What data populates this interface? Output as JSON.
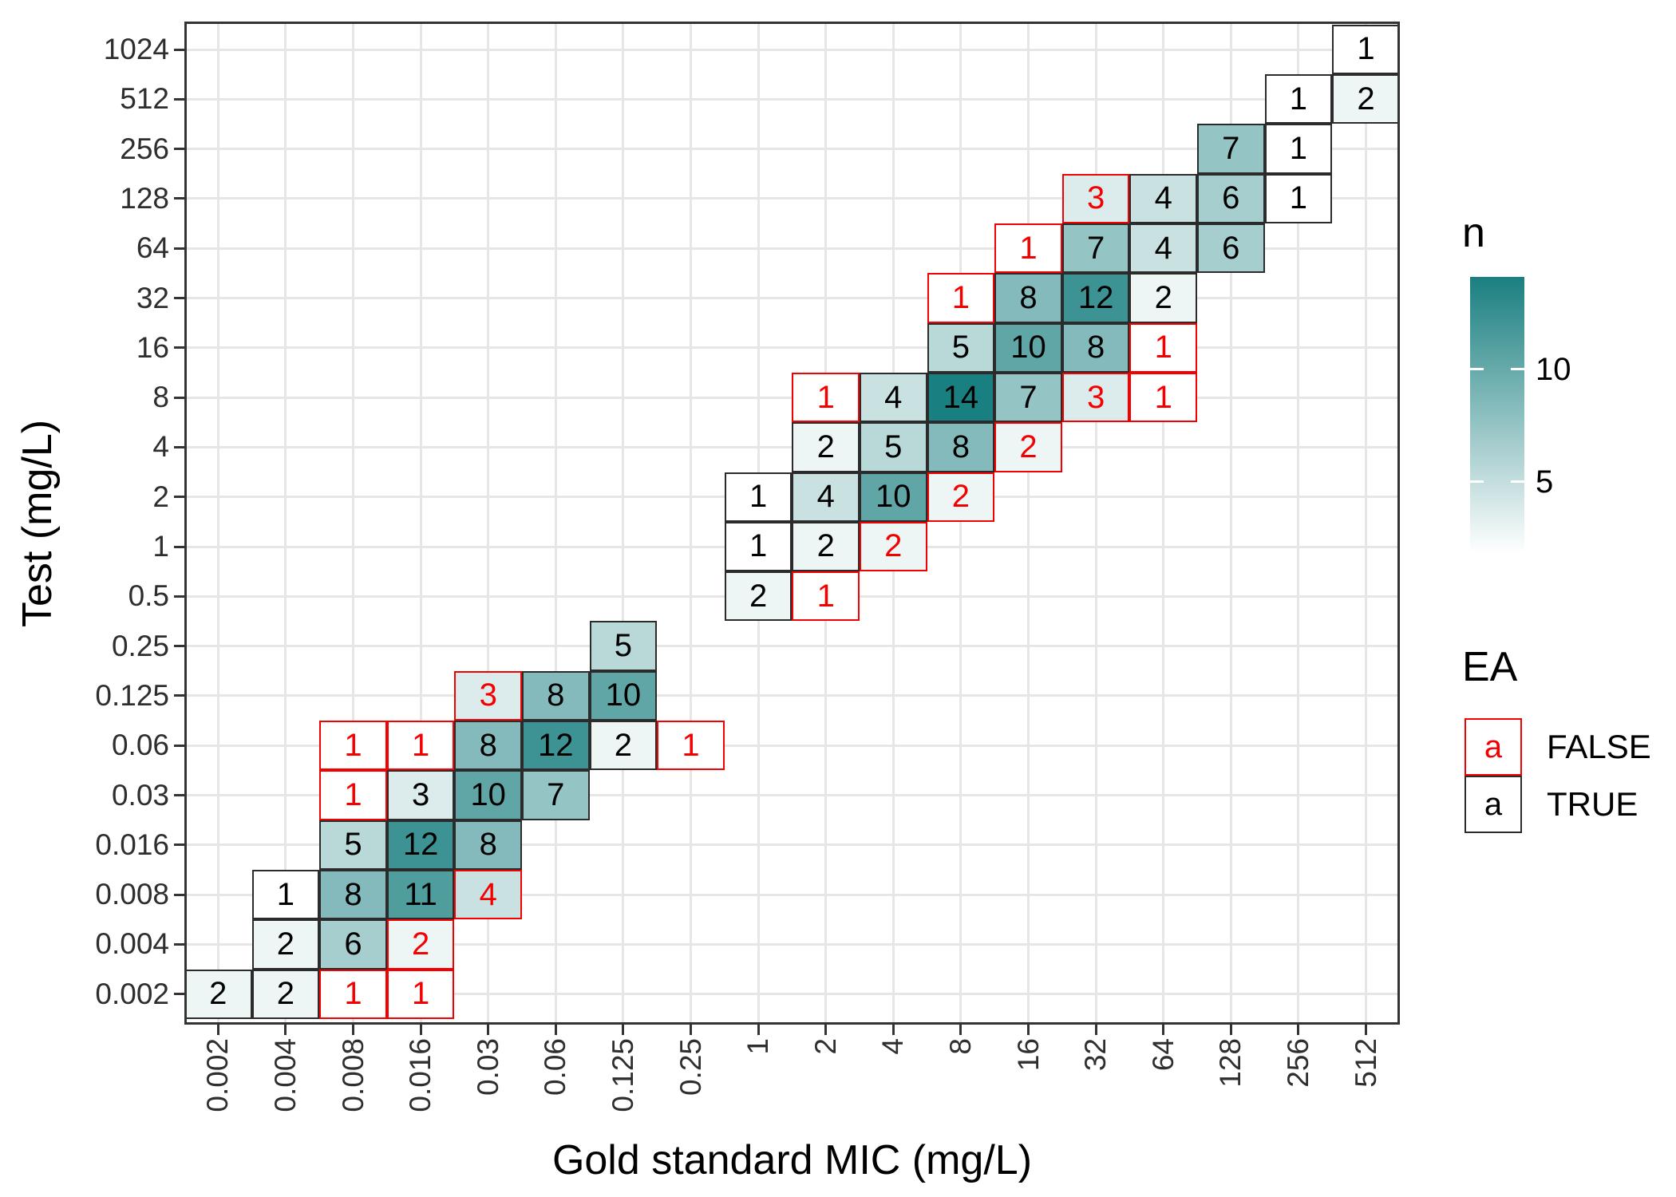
{
  "chart_data": {
    "type": "heatmap",
    "title": "",
    "xlabel": "Gold standard MIC (mg/L)",
    "ylabel": "Test (mg/L)",
    "grid": true,
    "x_categories": [
      "0.002",
      "0.004",
      "0.008",
      "0.016",
      "0.03",
      "0.06",
      "0.125",
      "0.25",
      "1",
      "2",
      "4",
      "8",
      "16",
      "32",
      "64",
      "128",
      "256",
      "512"
    ],
    "y_categories": [
      "1024",
      "512",
      "256",
      "128",
      "64",
      "32",
      "16",
      "8",
      "4",
      "2",
      "1",
      "0.5",
      "0.25",
      "0.125",
      "0.06",
      "0.03",
      "0.016",
      "0.008",
      "0.004",
      "0.002"
    ],
    "fill_legend": {
      "title": "n",
      "tick_labels": [
        "10",
        "5"
      ],
      "domain": [
        1,
        14
      ],
      "position": "right"
    },
    "ea_legend": {
      "title": "EA",
      "entries": [
        {
          "key": "a",
          "label": "FALSE"
        },
        {
          "key": "a",
          "label": "TRUE"
        }
      ]
    },
    "colors": {
      "fill_low": "#ffffff",
      "fill_high": "#1a7f80",
      "ea_false": "#f40000",
      "ea_true_text": "#000000",
      "cell_border_true": "#2b2b2b"
    },
    "cells": [
      {
        "x": "512",
        "y": "1024",
        "n": 1,
        "ea": true
      },
      {
        "x": "256",
        "y": "512",
        "n": 1,
        "ea": true
      },
      {
        "x": "512",
        "y": "512",
        "n": 2,
        "ea": true
      },
      {
        "x": "128",
        "y": "256",
        "n": 7,
        "ea": true
      },
      {
        "x": "256",
        "y": "256",
        "n": 1,
        "ea": true
      },
      {
        "x": "32",
        "y": "128",
        "n": 3,
        "ea": false
      },
      {
        "x": "64",
        "y": "128",
        "n": 4,
        "ea": true
      },
      {
        "x": "128",
        "y": "128",
        "n": 6,
        "ea": true
      },
      {
        "x": "256",
        "y": "128",
        "n": 1,
        "ea": true
      },
      {
        "x": "16",
        "y": "64",
        "n": 1,
        "ea": false
      },
      {
        "x": "32",
        "y": "64",
        "n": 7,
        "ea": true
      },
      {
        "x": "64",
        "y": "64",
        "n": 4,
        "ea": true
      },
      {
        "x": "128",
        "y": "64",
        "n": 6,
        "ea": true
      },
      {
        "x": "8",
        "y": "32",
        "n": 1,
        "ea": false
      },
      {
        "x": "16",
        "y": "32",
        "n": 8,
        "ea": true
      },
      {
        "x": "32",
        "y": "32",
        "n": 12,
        "ea": true
      },
      {
        "x": "64",
        "y": "32",
        "n": 2,
        "ea": true
      },
      {
        "x": "8",
        "y": "16",
        "n": 5,
        "ea": true
      },
      {
        "x": "16",
        "y": "16",
        "n": 10,
        "ea": true
      },
      {
        "x": "32",
        "y": "16",
        "n": 8,
        "ea": true
      },
      {
        "x": "64",
        "y": "16",
        "n": 1,
        "ea": false
      },
      {
        "x": "2",
        "y": "8",
        "n": 1,
        "ea": false
      },
      {
        "x": "4",
        "y": "8",
        "n": 4,
        "ea": true
      },
      {
        "x": "8",
        "y": "8",
        "n": 14,
        "ea": true
      },
      {
        "x": "16",
        "y": "8",
        "n": 7,
        "ea": true
      },
      {
        "x": "32",
        "y": "8",
        "n": 3,
        "ea": false
      },
      {
        "x": "64",
        "y": "8",
        "n": 1,
        "ea": false
      },
      {
        "x": "2",
        "y": "4",
        "n": 2,
        "ea": true
      },
      {
        "x": "4",
        "y": "4",
        "n": 5,
        "ea": true
      },
      {
        "x": "8",
        "y": "4",
        "n": 8,
        "ea": true
      },
      {
        "x": "16",
        "y": "4",
        "n": 2,
        "ea": false
      },
      {
        "x": "1",
        "y": "2",
        "n": 1,
        "ea": true
      },
      {
        "x": "2",
        "y": "2",
        "n": 4,
        "ea": true
      },
      {
        "x": "4",
        "y": "2",
        "n": 10,
        "ea": true
      },
      {
        "x": "8",
        "y": "2",
        "n": 2,
        "ea": false
      },
      {
        "x": "1",
        "y": "1",
        "n": 1,
        "ea": true
      },
      {
        "x": "2",
        "y": "1",
        "n": 2,
        "ea": true
      },
      {
        "x": "4",
        "y": "1",
        "n": 2,
        "ea": false
      },
      {
        "x": "1",
        "y": "0.5",
        "n": 2,
        "ea": true
      },
      {
        "x": "2",
        "y": "0.5",
        "n": 1,
        "ea": false
      },
      {
        "x": "0.125",
        "y": "0.25",
        "n": 5,
        "ea": true
      },
      {
        "x": "0.03",
        "y": "0.125",
        "n": 3,
        "ea": false
      },
      {
        "x": "0.06",
        "y": "0.125",
        "n": 8,
        "ea": true
      },
      {
        "x": "0.125",
        "y": "0.125",
        "n": 10,
        "ea": true
      },
      {
        "x": "0.008",
        "y": "0.06",
        "n": 1,
        "ea": false
      },
      {
        "x": "0.016",
        "y": "0.06",
        "n": 1,
        "ea": false
      },
      {
        "x": "0.03",
        "y": "0.06",
        "n": 8,
        "ea": true
      },
      {
        "x": "0.06",
        "y": "0.06",
        "n": 12,
        "ea": true
      },
      {
        "x": "0.125",
        "y": "0.06",
        "n": 2,
        "ea": true
      },
      {
        "x": "0.25",
        "y": "0.06",
        "n": 1,
        "ea": false
      },
      {
        "x": "0.008",
        "y": "0.03",
        "n": 1,
        "ea": false
      },
      {
        "x": "0.016",
        "y": "0.03",
        "n": 3,
        "ea": true
      },
      {
        "x": "0.03",
        "y": "0.03",
        "n": 10,
        "ea": true
      },
      {
        "x": "0.06",
        "y": "0.03",
        "n": 7,
        "ea": true
      },
      {
        "x": "0.008",
        "y": "0.016",
        "n": 5,
        "ea": true
      },
      {
        "x": "0.016",
        "y": "0.016",
        "n": 12,
        "ea": true
      },
      {
        "x": "0.03",
        "y": "0.016",
        "n": 8,
        "ea": true
      },
      {
        "x": "0.004",
        "y": "0.008",
        "n": 1,
        "ea": true
      },
      {
        "x": "0.008",
        "y": "0.008",
        "n": 8,
        "ea": true
      },
      {
        "x": "0.016",
        "y": "0.008",
        "n": 11,
        "ea": true
      },
      {
        "x": "0.03",
        "y": "0.008",
        "n": 4,
        "ea": false
      },
      {
        "x": "0.004",
        "y": "0.004",
        "n": 2,
        "ea": true
      },
      {
        "x": "0.008",
        "y": "0.004",
        "n": 6,
        "ea": true
      },
      {
        "x": "0.016",
        "y": "0.004",
        "n": 2,
        "ea": false
      },
      {
        "x": "0.002",
        "y": "0.002",
        "n": 2,
        "ea": true
      },
      {
        "x": "0.004",
        "y": "0.002",
        "n": 2,
        "ea": true
      },
      {
        "x": "0.008",
        "y": "0.002",
        "n": 1,
        "ea": false
      },
      {
        "x": "0.016",
        "y": "0.002",
        "n": 1,
        "ea": false
      }
    ]
  }
}
